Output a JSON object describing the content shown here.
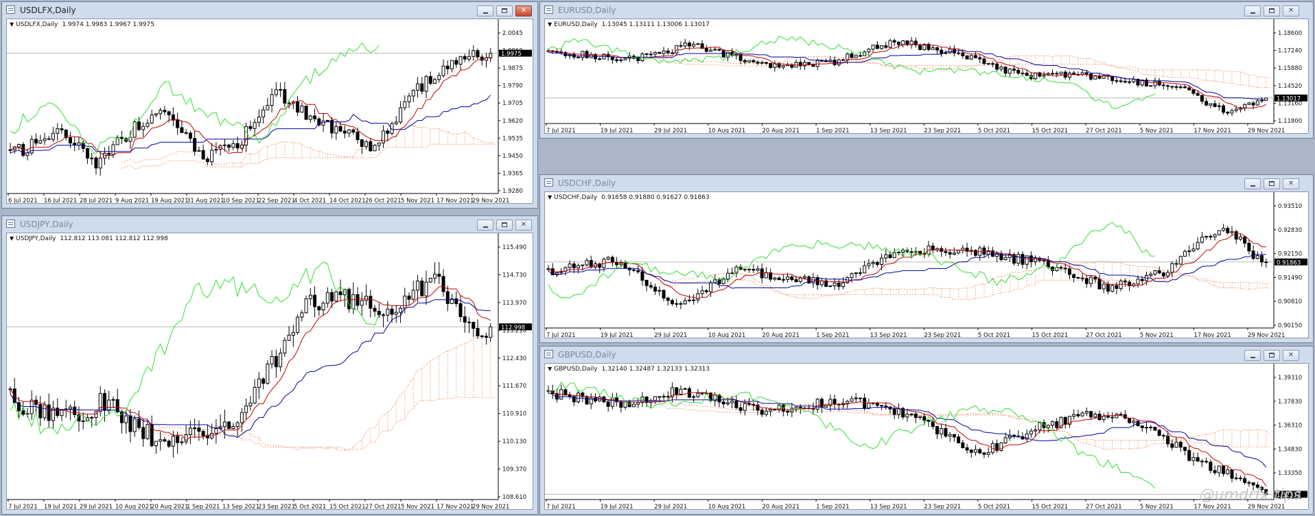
{
  "colors": {
    "tenkan": "#c00000",
    "kijun": "#0000a0",
    "chikou": "#33dd33",
    "cloud": "#ef9f78",
    "price_marker": "#000000"
  },
  "windows": [
    {
      "id": "usdlfx",
      "title": "USDLFX,Daily",
      "active": true,
      "header_symbol": "USDLFX,Daily",
      "header_values": "1.9974 1.9983 1.9967 1.9975",
      "price_label": "1.9975",
      "price_level": 1.9975,
      "yaxis": [
        "2.0045",
        "1.9960",
        "1.9875",
        "1.9790",
        "1.9705",
        "1.9620",
        "1.9535",
        "1.9450",
        "1.9365",
        "1.9280"
      ],
      "xaxis": [
        "6 Jul 2021",
        "16 Jul 2021",
        "28 Jul 2021",
        "9 Aug 2021",
        "19 Aug 2021",
        "31 Aug 2021",
        "10 Sep 2021",
        "22 Sep 2021",
        "4 Oct 2021",
        "14 Oct 2021",
        "26 Oct 2021",
        "5 Nov 2021",
        "17 Nov 2021",
        "29 Nov 2021"
      ],
      "buttons": {
        "minimize": "minimize",
        "maximize": "maximize",
        "close": "close"
      }
    },
    {
      "id": "usdjpy",
      "title": "USDJPY,Daily",
      "active": false,
      "header_symbol": "USDJPY,Daily",
      "header_values": "112.812 113.081 112.812 112.998",
      "price_label": "112.998",
      "price_level": 112.998,
      "yaxis": [
        "115.490",
        "114.730",
        "113.970",
        "113.210",
        "112.430",
        "111.670",
        "110.910",
        "110.130",
        "109.370",
        "108.610"
      ],
      "xaxis": [
        "7 Jul 2021",
        "19 Jul 2021",
        "29 Jul 2021",
        "10 Aug 2021",
        "20 Aug 2021",
        "1 Sep 2021",
        "13 Sep 2021",
        "23 Sep 2021",
        "5 Oct 2021",
        "15 Oct 2021",
        "27 Oct 2021",
        "5 Nov 2021",
        "17 Nov 2021",
        "29 Nov 2021"
      ],
      "buttons": {
        "minimize": "minimize",
        "maximize": "maximize",
        "close": "close"
      }
    },
    {
      "id": "eurusd",
      "title": "EURUSD,Daily",
      "active": false,
      "header_symbol": "EURUSD,Daily",
      "header_values": "1.13045 1.13111 1.13006 1.13017",
      "price_label": "1.13017",
      "price_level": 1.13017,
      "yaxis": [
        "1.18600",
        "1.17240",
        "1.15880",
        "1.14520",
        "1.13160",
        "1.11800"
      ],
      "xaxis": [
        "7 Jul 2021",
        "19 Jul 2021",
        "29 Jul 2021",
        "10 Aug 2021",
        "20 Aug 2021",
        "1 Sep 2021",
        "13 Sep 2021",
        "23 Sep 2021",
        "5 Oct 2021",
        "15 Oct 2021",
        "27 Oct 2021",
        "5 Nov 2021",
        "17 Nov 2021",
        "29 Nov 2021"
      ],
      "buttons": {
        "minimize": "minimize",
        "maximize": "maximize",
        "close": "close"
      }
    },
    {
      "id": "usdchf",
      "title": "USDCHF,Daily",
      "active": false,
      "header_symbol": "USDCHF,Daily",
      "header_values": "0.91658 0.91880 0.91627 0.91863",
      "price_label": "0.91863",
      "price_level": 0.91863,
      "yaxis": [
        "0.93510",
        "0.92830",
        "0.92150",
        "0.91490",
        "0.90810",
        "0.90150"
      ],
      "xaxis": [
        "7 Jul 2021",
        "19 Jul 2021",
        "29 Jul 2021",
        "10 Aug 2021",
        "20 Aug 2021",
        "1 Sep 2021",
        "13 Sep 2021",
        "23 Sep 2021",
        "5 Oct 2021",
        "15 Oct 2021",
        "27 Oct 2021",
        "5 Nov 2021",
        "17 Nov 2021",
        "29 Nov 2021"
      ],
      "buttons": {
        "minimize": "minimize",
        "maximize": "maximize",
        "close": "close"
      }
    },
    {
      "id": "gbpusd",
      "title": "GBPUSD,Daily",
      "active": false,
      "header_symbol": "GBPUSD,Daily",
      "header_values": "1.32140 1.32487 1.32133 1.32313",
      "price_label": "1.32313",
      "price_level": 1.32313,
      "yaxis": [
        "1.39310",
        "1.37830",
        "1.36310",
        "1.34830",
        "1.33350",
        "1.31870"
      ],
      "xaxis": [
        "7 Jul 2021",
        "19 Jul 2021",
        "29 Jul 2021",
        "10 Aug 2021",
        "20 Aug 2021",
        "1 Sep 2021",
        "13 Sep 2021",
        "23 Sep 2021",
        "5 Oct 2021",
        "15 Oct 2021",
        "27 Oct 2021",
        "5 Nov 2021",
        "17 Nov 2021",
        "29 Nov 2021"
      ],
      "buttons": {
        "minimize": "minimize",
        "maximize": "maximize",
        "close": "close"
      },
      "watermark": "@umdrfx.tips"
    }
  ]
}
